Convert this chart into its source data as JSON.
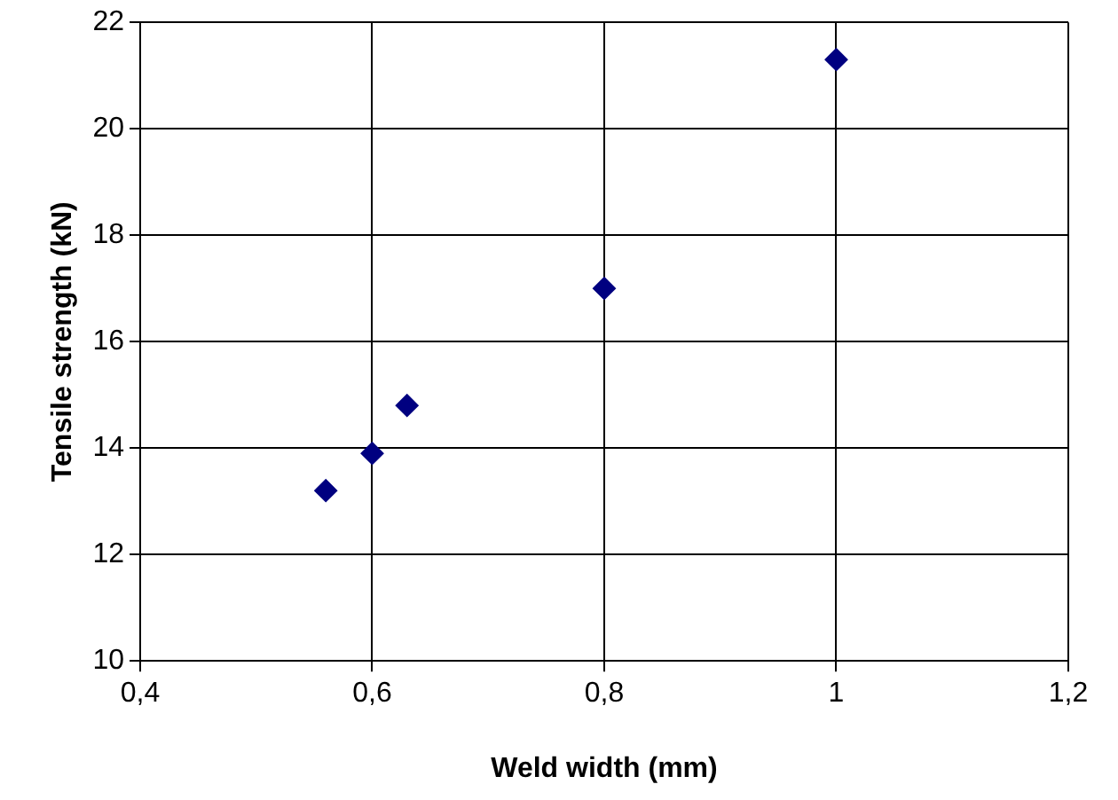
{
  "chart_data": {
    "type": "scatter",
    "xlabel": "Weld width (mm)",
    "ylabel": "Tensile strength (kN)",
    "x": [
      0.56,
      0.6,
      0.63,
      0.8,
      1.0
    ],
    "series": [
      {
        "color": "#000080",
        "values": [
          13.2,
          13.9,
          14.8,
          17.0,
          21.3
        ]
      }
    ],
    "xlim": [
      0.4,
      1.2
    ],
    "xticks": [
      {
        "value": 0.4,
        "label": "0,4"
      },
      {
        "value": 0.6,
        "label": "0,6"
      },
      {
        "value": 0.8,
        "label": "0,8"
      },
      {
        "value": 1,
        "label": "1"
      },
      {
        "value": 1.2,
        "label": "1,2"
      }
    ],
    "ylim": [
      10,
      22
    ],
    "yticks": [
      10,
      12,
      14,
      16,
      18,
      20,
      22
    ],
    "grid": true,
    "marker": "diamond",
    "legend": false
  }
}
